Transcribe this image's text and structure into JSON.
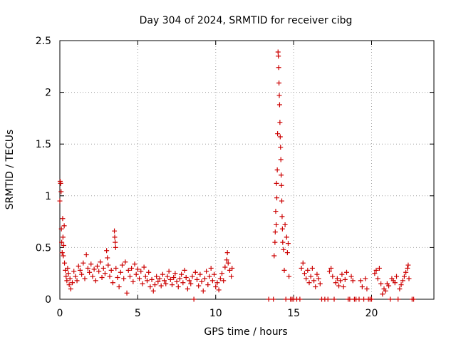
{
  "chart_data": {
    "type": "scatter",
    "title": "Day 304 of 2024, SRMTID for receiver cibg",
    "xlabel": "GPS time / hours",
    "ylabel": "SRMTID / TECUs",
    "xlim": [
      0,
      24
    ],
    "ylim": [
      0,
      2.5
    ],
    "x_ticks": [
      0,
      5,
      10,
      15,
      20
    ],
    "x_tick_labels": [
      "0",
      "5",
      "10",
      "15",
      "20"
    ],
    "y_ticks": [
      0,
      0.5,
      1,
      1.5,
      2,
      2.5
    ],
    "y_tick_labels": [
      "0",
      "0.5",
      "1",
      "1.5",
      "2",
      "2.5"
    ],
    "grid": true,
    "marker": "plus",
    "series": [
      {
        "name": "SRMTID",
        "color": "#ff0000",
        "marker_color": "#cc0000",
        "points": [
          [
            0.0,
            0.95
          ],
          [
            0.02,
            1.14
          ],
          [
            0.05,
            1.12
          ],
          [
            0.08,
            1.04
          ],
          [
            0.1,
            0.68
          ],
          [
            0.12,
            0.55
          ],
          [
            0.15,
            0.45
          ],
          [
            0.18,
            0.78
          ],
          [
            0.2,
            0.6
          ],
          [
            0.22,
            0.42
          ],
          [
            0.25,
            0.52
          ],
          [
            0.28,
            0.71
          ],
          [
            0.3,
            0.35
          ],
          [
            0.35,
            0.28
          ],
          [
            0.4,
            0.22
          ],
          [
            0.45,
            0.18
          ],
          [
            0.5,
            0.3
          ],
          [
            0.55,
            0.25
          ],
          [
            0.6,
            0.14
          ],
          [
            0.65,
            0.2
          ],
          [
            0.7,
            0.1
          ],
          [
            0.8,
            0.16
          ],
          [
            0.9,
            0.27
          ],
          [
            1.0,
            0.22
          ],
          [
            1.1,
            0.18
          ],
          [
            1.2,
            0.32
          ],
          [
            1.3,
            0.28
          ],
          [
            1.4,
            0.24
          ],
          [
            1.5,
            0.35
          ],
          [
            1.6,
            0.2
          ],
          [
            1.7,
            0.43
          ],
          [
            1.8,
            0.3
          ],
          [
            1.9,
            0.26
          ],
          [
            2.0,
            0.34
          ],
          [
            2.1,
            0.22
          ],
          [
            2.2,
            0.29
          ],
          [
            2.3,
            0.18
          ],
          [
            2.4,
            0.32
          ],
          [
            2.5,
            0.27
          ],
          [
            2.6,
            0.36
          ],
          [
            2.7,
            0.21
          ],
          [
            2.8,
            0.3
          ],
          [
            2.9,
            0.25
          ],
          [
            3.0,
            0.47
          ],
          [
            3.05,
            0.4
          ],
          [
            3.1,
            0.33
          ],
          [
            3.2,
            0.22
          ],
          [
            3.3,
            0.28
          ],
          [
            3.4,
            0.16
          ],
          [
            3.5,
            0.66
          ],
          [
            3.52,
            0.6
          ],
          [
            3.55,
            0.55
          ],
          [
            3.58,
            0.5
          ],
          [
            3.6,
            0.3
          ],
          [
            3.7,
            0.21
          ],
          [
            3.8,
            0.12
          ],
          [
            3.9,
            0.26
          ],
          [
            4.0,
            0.33
          ],
          [
            4.1,
            0.2
          ],
          [
            4.2,
            0.36
          ],
          [
            4.3,
            0.06
          ],
          [
            4.4,
            0.28
          ],
          [
            4.5,
            0.22
          ],
          [
            4.6,
            0.3
          ],
          [
            4.7,
            0.17
          ],
          [
            4.8,
            0.34
          ],
          [
            4.9,
            0.24
          ],
          [
            5.0,
            0.29
          ],
          [
            5.1,
            0.2
          ],
          [
            5.2,
            0.27
          ],
          [
            5.3,
            0.15
          ],
          [
            5.4,
            0.31
          ],
          [
            5.5,
            0.22
          ],
          [
            5.6,
            0.18
          ],
          [
            5.7,
            0.26
          ],
          [
            5.8,
            0.12
          ],
          [
            5.9,
            0.19
          ],
          [
            6.0,
            0.08
          ],
          [
            6.1,
            0.14
          ],
          [
            6.2,
            0.22
          ],
          [
            6.3,
            0.17
          ],
          [
            6.4,
            0.2
          ],
          [
            6.5,
            0.13
          ],
          [
            6.6,
            0.24
          ],
          [
            6.7,
            0.18
          ],
          [
            6.8,
            0.15
          ],
          [
            6.9,
            0.22
          ],
          [
            7.0,
            0.27
          ],
          [
            7.1,
            0.19
          ],
          [
            7.2,
            0.14
          ],
          [
            7.3,
            0.21
          ],
          [
            7.4,
            0.25
          ],
          [
            7.5,
            0.17
          ],
          [
            7.6,
            0.12
          ],
          [
            7.7,
            0.2
          ],
          [
            7.8,
            0.24
          ],
          [
            7.9,
            0.16
          ],
          [
            8.0,
            0.28
          ],
          [
            8.1,
            0.21
          ],
          [
            8.2,
            0.1
          ],
          [
            8.3,
            0.18
          ],
          [
            8.4,
            0.15
          ],
          [
            8.5,
            0.22
          ],
          [
            8.6,
            0.0
          ],
          [
            8.7,
            0.26
          ],
          [
            8.8,
            0.19
          ],
          [
            8.9,
            0.13
          ],
          [
            9.0,
            0.24
          ],
          [
            9.1,
            0.17
          ],
          [
            9.2,
            0.08
          ],
          [
            9.3,
            0.2
          ],
          [
            9.4,
            0.27
          ],
          [
            9.5,
            0.14
          ],
          [
            9.6,
            0.22
          ],
          [
            9.7,
            0.3
          ],
          [
            9.8,
            0.18
          ],
          [
            9.9,
            0.24
          ],
          [
            10.0,
            0.12
          ],
          [
            10.1,
            0.16
          ],
          [
            10.2,
            0.09
          ],
          [
            10.3,
            0.2
          ],
          [
            10.4,
            0.25
          ],
          [
            10.5,
            0.18
          ],
          [
            10.6,
            0.31
          ],
          [
            10.7,
            0.38
          ],
          [
            10.75,
            0.45
          ],
          [
            10.8,
            0.35
          ],
          [
            10.9,
            0.28
          ],
          [
            11.0,
            0.22
          ],
          [
            11.05,
            0.3
          ],
          [
            13.4,
            0.0
          ],
          [
            13.7,
            0.0
          ],
          [
            13.75,
            0.42
          ],
          [
            13.8,
            0.55
          ],
          [
            13.82,
            0.65
          ],
          [
            13.85,
            0.85
          ],
          [
            13.88,
            0.72
          ],
          [
            13.9,
            1.12
          ],
          [
            13.92,
            0.98
          ],
          [
            13.95,
            1.25
          ],
          [
            13.97,
            1.6
          ],
          [
            14.0,
            2.39
          ],
          [
            14.02,
            2.35
          ],
          [
            14.04,
            2.24
          ],
          [
            14.06,
            2.09
          ],
          [
            14.08,
            1.97
          ],
          [
            14.1,
            1.88
          ],
          [
            14.12,
            1.71
          ],
          [
            14.14,
            1.57
          ],
          [
            14.16,
            1.47
          ],
          [
            14.18,
            1.35
          ],
          [
            14.2,
            1.2
          ],
          [
            14.22,
            1.1
          ],
          [
            14.24,
            0.95
          ],
          [
            14.26,
            0.8
          ],
          [
            14.28,
            0.68
          ],
          [
            14.3,
            0.55
          ],
          [
            14.35,
            0.48
          ],
          [
            14.4,
            0.28
          ],
          [
            14.45,
            0.72
          ],
          [
            14.5,
            0.0
          ],
          [
            14.55,
            0.6
          ],
          [
            14.6,
            0.45
          ],
          [
            14.65,
            0.54
          ],
          [
            14.7,
            0.22
          ],
          [
            14.8,
            0.0
          ],
          [
            14.9,
            0.0
          ],
          [
            15.0,
            0.0
          ],
          [
            15.2,
            0.0
          ],
          [
            15.4,
            0.0
          ],
          [
            15.5,
            0.3
          ],
          [
            15.6,
            0.35
          ],
          [
            15.7,
            0.25
          ],
          [
            15.8,
            0.2
          ],
          [
            15.9,
            0.28
          ],
          [
            16.0,
            0.16
          ],
          [
            16.1,
            0.22
          ],
          [
            16.2,
            0.3
          ],
          [
            16.3,
            0.18
          ],
          [
            16.4,
            0.12
          ],
          [
            16.5,
            0.24
          ],
          [
            16.6,
            0.2
          ],
          [
            16.7,
            0.15
          ],
          [
            16.8,
            0.0
          ],
          [
            17.0,
            0.0
          ],
          [
            17.2,
            0.0
          ],
          [
            17.3,
            0.27
          ],
          [
            17.4,
            0.3
          ],
          [
            17.5,
            0.22
          ],
          [
            17.6,
            0.0
          ],
          [
            17.7,
            0.16
          ],
          [
            17.8,
            0.2
          ],
          [
            17.9,
            0.13
          ],
          [
            18.0,
            0.18
          ],
          [
            18.1,
            0.24
          ],
          [
            18.2,
            0.12
          ],
          [
            18.3,
            0.19
          ],
          [
            18.4,
            0.26
          ],
          [
            18.5,
            0.0
          ],
          [
            18.6,
            0.0
          ],
          [
            18.7,
            0.22
          ],
          [
            18.8,
            0.18
          ],
          [
            18.9,
            0.0
          ],
          [
            19.0,
            0.0
          ],
          [
            19.2,
            0.0
          ],
          [
            19.3,
            0.18
          ],
          [
            19.4,
            0.12
          ],
          [
            19.5,
            0.0
          ],
          [
            19.6,
            0.2
          ],
          [
            19.7,
            0.1
          ],
          [
            19.8,
            0.0
          ],
          [
            19.9,
            0.0
          ],
          [
            20.0,
            0.0
          ],
          [
            20.2,
            0.25
          ],
          [
            20.3,
            0.28
          ],
          [
            20.4,
            0.2
          ],
          [
            20.5,
            0.3
          ],
          [
            20.6,
            0.15
          ],
          [
            20.7,
            0.05
          ],
          [
            20.8,
            0.1
          ],
          [
            20.9,
            0.08
          ],
          [
            21.0,
            0.15
          ],
          [
            21.1,
            0.13
          ],
          [
            21.2,
            0.0
          ],
          [
            21.3,
            0.2
          ],
          [
            21.4,
            0.18
          ],
          [
            21.5,
            0.16
          ],
          [
            21.6,
            0.22
          ],
          [
            21.7,
            0.0
          ],
          [
            21.8,
            0.1
          ],
          [
            21.9,
            0.14
          ],
          [
            22.0,
            0.18
          ],
          [
            22.1,
            0.22
          ],
          [
            22.2,
            0.26
          ],
          [
            22.3,
            0.3
          ],
          [
            22.35,
            0.33
          ],
          [
            22.4,
            0.2
          ],
          [
            22.6,
            0.0
          ],
          [
            22.7,
            0.0
          ]
        ]
      }
    ]
  }
}
